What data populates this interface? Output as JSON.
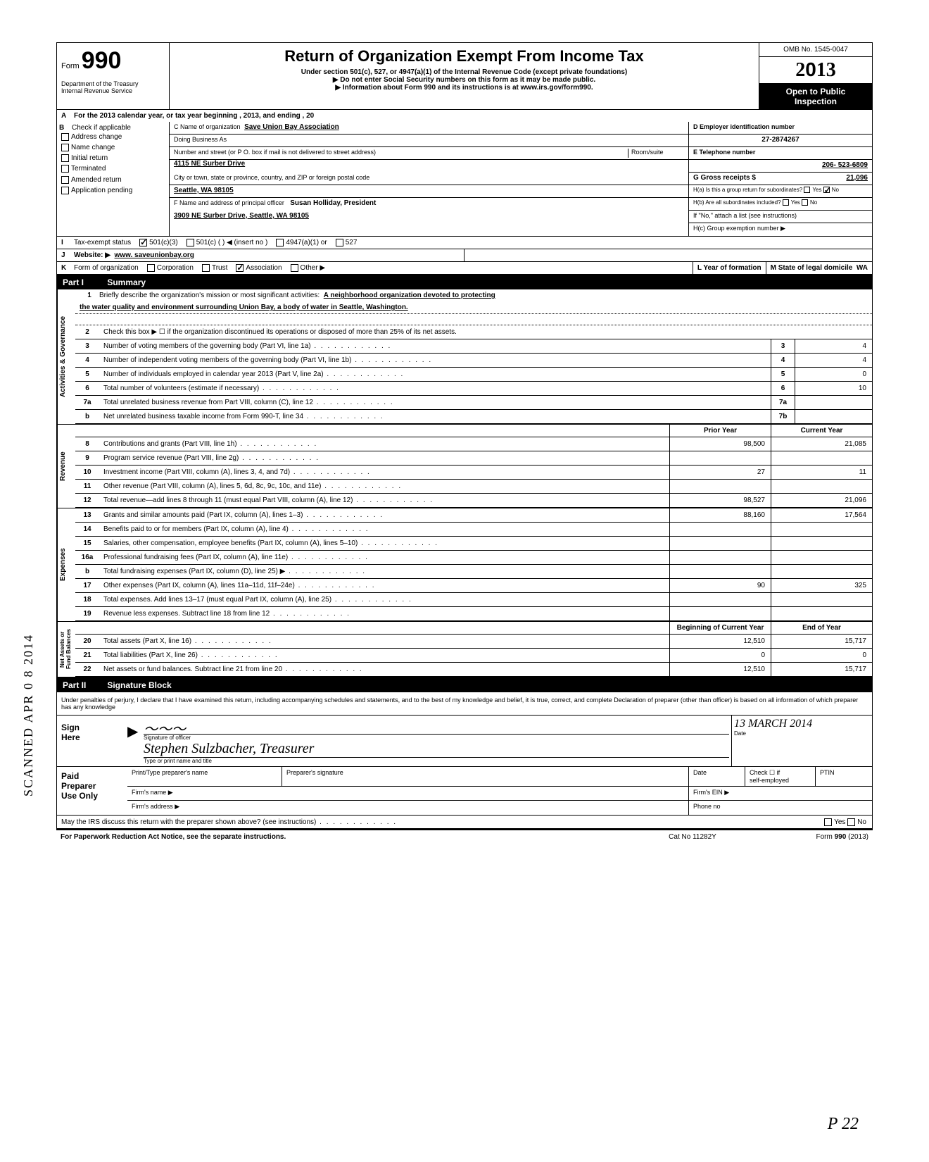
{
  "header": {
    "form_label": "Form",
    "form_number": "990",
    "dept": "Department of the Treasury\nInternal Revenue Service",
    "title": "Return of Organization Exempt From Income Tax",
    "subtitle": "Under section 501(c), 527, or 4947(a)(1) of the Internal Revenue Code (except private foundations)",
    "warn": "▶ Do not enter Social Security numbers on this form as it may be made public.",
    "info": "▶ Information about Form 990 and its instructions is at www.irs.gov/form990.",
    "omb": "OMB No. 1545-0047",
    "year_prefix": "2",
    "year_mid": "0",
    "year_suffix": "13",
    "open": "Open to Public\nInspection"
  },
  "row_a": "For the 2013 calendar year, or tax year beginning                                              , 2013, and ending                                              , 20",
  "b": {
    "label": "Check if applicable",
    "items": [
      "Address change",
      "Name change",
      "Initial return",
      "Terminated",
      "Amended return",
      "Application pending"
    ]
  },
  "c": {
    "name_label": "C Name of organization",
    "name": "Save Union Bay Association",
    "dba_label": "Doing Business As",
    "street_label": "Number and street (or P O. box if mail is not delivered to street address)",
    "room_label": "Room/suite",
    "street": "4115 NE Surber Drive",
    "city_label": "City or town, state or province, country, and ZIP or foreign postal code",
    "city": "Seattle, WA   98105",
    "f_label": "F Name and address of principal officer",
    "f_name": "Susan Holliday, President",
    "f_addr": "3909 NE Surber Drive, Seattle, WA   98105"
  },
  "d": {
    "label": "D Employer identification number",
    "value": "27-2874267"
  },
  "e": {
    "label": "E Telephone number",
    "value": "206- 523-6809"
  },
  "g": {
    "label": "G Gross receipts $",
    "value": "21,096"
  },
  "h": {
    "a": "H(a) Is this a group return for subordinates?",
    "b": "H(b) Are all subordinates included?",
    "note": "If \"No,\" attach a list  (see instructions)",
    "c": "H(c) Group exemption number ▶"
  },
  "i": {
    "label": "Tax-exempt status",
    "opts": [
      "501(c)(3)",
      "501(c) (        ) ◀ (insert no )",
      "4947(a)(1) or",
      "527"
    ]
  },
  "j": {
    "label": "Website: ▶",
    "value": "www. saveunionbay.org"
  },
  "k": {
    "label": "Form of organization",
    "opts": [
      "Corporation",
      "Trust",
      "Association",
      "Other ▶"
    ],
    "year_label": "L Year of formation",
    "state_label": "M State of legal domicile",
    "state": "WA"
  },
  "part1": {
    "num": "Part I",
    "title": "Summary"
  },
  "tabs": {
    "ag": "Activities & Governance",
    "rev": "Revenue",
    "exp": "Expenses",
    "net": "Net Assets or\nFund Balances"
  },
  "line1": {
    "num": "1",
    "text": "Briefly describe the organization's mission or most significant activities:",
    "val": "A neighborhood organization devoted to protecting",
    "val2": "the water quality and environment surrounding Union Bay, a body of water in Seattle, Washington."
  },
  "line2": {
    "num": "2",
    "text": "Check this box ▶ ☐ if the organization discontinued its operations or disposed of more than 25% of its net assets."
  },
  "lines_gov": [
    {
      "num": "3",
      "text": "Number of voting members of the governing body (Part VI, line 1a)",
      "box": "3",
      "val": "4"
    },
    {
      "num": "4",
      "text": "Number of independent voting members of the governing body (Part VI, line 1b)",
      "box": "4",
      "val": "4"
    },
    {
      "num": "5",
      "text": "Number of individuals employed in calendar year 2013 (Part V, line 2a)",
      "box": "5",
      "val": "0"
    },
    {
      "num": "6",
      "text": "Total number of volunteers (estimate if necessary)",
      "box": "6",
      "val": "10"
    },
    {
      "num": "7a",
      "text": "Total unrelated business revenue from Part VIII, column (C), line 12",
      "box": "7a",
      "val": ""
    },
    {
      "num": "b",
      "text": "Net unrelated business taxable income from Form 990-T, line 34",
      "box": "7b",
      "val": ""
    }
  ],
  "col_headers": {
    "prior": "Prior Year",
    "current": "Current Year",
    "begin": "Beginning of Current Year",
    "end": "End of Year"
  },
  "lines_rev": [
    {
      "num": "8",
      "text": "Contributions and grants (Part VIII, line 1h)",
      "prior": "98,500",
      "curr": "21,085"
    },
    {
      "num": "9",
      "text": "Program service revenue (Part VIII, line 2g)",
      "prior": "",
      "curr": ""
    },
    {
      "num": "10",
      "text": "Investment income (Part VIII, column (A), lines 3, 4, and 7d)",
      "prior": "27",
      "curr": "11"
    },
    {
      "num": "11",
      "text": "Other revenue (Part VIII, column (A), lines 5, 6d, 8c, 9c, 10c, and 11e)",
      "prior": "",
      "curr": ""
    },
    {
      "num": "12",
      "text": "Total revenue—add lines 8 through 11 (must equal Part VIII, column (A), line 12)",
      "prior": "98,527",
      "curr": "21,096"
    }
  ],
  "lines_exp": [
    {
      "num": "13",
      "text": "Grants and similar amounts paid (Part IX, column (A), lines 1–3)",
      "prior": "88,160",
      "curr": "17,564"
    },
    {
      "num": "14",
      "text": "Benefits paid to or for members (Part IX, column (A), line 4)",
      "prior": "",
      "curr": ""
    },
    {
      "num": "15",
      "text": "Salaries, other compensation, employee benefits (Part IX, column (A), lines 5–10)",
      "prior": "",
      "curr": ""
    },
    {
      "num": "16a",
      "text": "Professional fundraising fees (Part IX, column (A), line 11e)",
      "prior": "",
      "curr": ""
    },
    {
      "num": "b",
      "text": "Total fundraising expenses (Part IX, column (D), line 25) ▶",
      "prior": "",
      "curr": ""
    },
    {
      "num": "17",
      "text": "Other expenses (Part IX, column (A), lines 11a–11d, 11f–24e)",
      "prior": "90",
      "curr": "325"
    },
    {
      "num": "18",
      "text": "Total expenses. Add lines 13–17 (must equal Part IX, column (A), line 25)",
      "prior": "",
      "curr": ""
    },
    {
      "num": "19",
      "text": "Revenue less expenses. Subtract line 18 from line 12",
      "prior": "",
      "curr": ""
    }
  ],
  "lines_net": [
    {
      "num": "20",
      "text": "Total assets (Part X, line 16)",
      "prior": "12,510",
      "curr": "15,717"
    },
    {
      "num": "21",
      "text": "Total liabilities (Part X, line 26)",
      "prior": "0",
      "curr": "0"
    },
    {
      "num": "22",
      "text": "Net assets or fund balances. Subtract line 21 from line 20",
      "prior": "12,510",
      "curr": "15,717"
    }
  ],
  "part2": {
    "num": "Part II",
    "title": "Signature Block"
  },
  "perjury": "Under penalties of perjury, I declare that I have examined this return, including accompanying schedules and statements, and to the best of my knowledge  and belief, it is true, correct, and complete  Declaration of preparer (other than officer) is based on all information of which preparer has any knowledge",
  "sign": {
    "here": "Sign\nHere",
    "sig_label": "Signature of officer",
    "name": "Stephen Sulzbacher, Treasurer",
    "name_label": "Type or print name and title",
    "date_label": "Date",
    "date": "13 MARCH 2014"
  },
  "paid": {
    "left": "Paid\nPreparer\nUse Only",
    "h1": "Print/Type preparer's name",
    "h2": "Preparer's signature",
    "h3": "Date",
    "h4": "Check ☐ if\nself-employed",
    "h5": "PTIN",
    "firm_name": "Firm's name     ▶",
    "firm_ein": "Firm's EIN ▶",
    "firm_addr": "Firm's address ▶",
    "phone": "Phone no"
  },
  "may_irs": "May the IRS discuss this return with the preparer shown above? (see instructions)",
  "footer": {
    "left": "For Paperwork Reduction Act Notice, see the separate instructions.",
    "mid": "Cat  No  11282Y",
    "right": "Form 990 (2013)"
  },
  "side_stamp": "SCANNED APR 0 8 2014",
  "page_num": "P 22"
}
